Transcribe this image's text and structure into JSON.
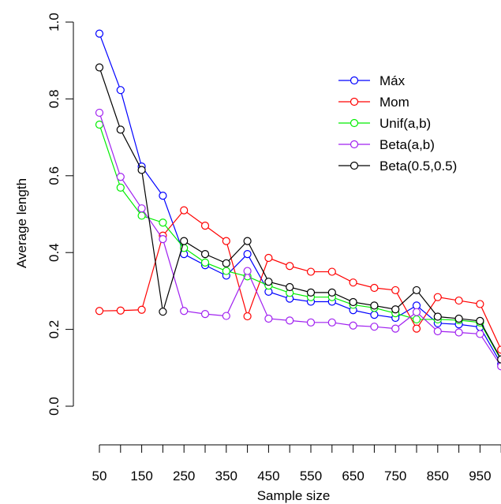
{
  "chart_data": {
    "type": "line",
    "xlabel": "Sample size",
    "ylabel": "Average length",
    "x": [
      50,
      100,
      150,
      200,
      250,
      300,
      350,
      400,
      450,
      500,
      550,
      600,
      650,
      700,
      750,
      800,
      850,
      900,
      950,
      1000
    ],
    "x_tick_labels": [
      "50",
      "150",
      "250",
      "350",
      "450",
      "550",
      "650",
      "750",
      "850",
      "950"
    ],
    "y_ticks": [
      "0.0",
      "0.2",
      "0.4",
      "0.6",
      "0.8",
      "1.0"
    ],
    "ylim": [
      0,
      1
    ],
    "grid": false,
    "legend_position": "top-right",
    "series": [
      {
        "name": "Máx",
        "color": "#0000ff",
        "values": [
          0.97,
          0.823,
          0.624,
          0.548,
          0.396,
          0.367,
          0.34,
          0.396,
          0.298,
          0.28,
          0.272,
          0.272,
          0.25,
          0.238,
          0.23,
          0.262,
          0.216,
          0.213,
          0.206,
          0.11
        ]
      },
      {
        "name": "Mom",
        "color": "#ff0000",
        "values": [
          0.248,
          0.249,
          0.251,
          0.444,
          0.51,
          0.47,
          0.43,
          0.234,
          0.386,
          0.365,
          0.35,
          0.35,
          0.322,
          0.308,
          0.302,
          0.202,
          0.284,
          0.275,
          0.266,
          0.147
        ]
      },
      {
        "name": "Unif(a,b)",
        "color": "#00ee00",
        "values": [
          0.733,
          0.569,
          0.496,
          0.478,
          0.412,
          0.374,
          0.352,
          0.338,
          0.314,
          0.295,
          0.284,
          0.284,
          0.264,
          0.256,
          0.242,
          0.226,
          0.226,
          0.224,
          0.218,
          0.12
        ]
      },
      {
        "name": "Beta(a,b)",
        "color": "#a020f0",
        "values": [
          0.764,
          0.597,
          0.515,
          0.435,
          0.248,
          0.24,
          0.235,
          0.352,
          0.228,
          0.223,
          0.218,
          0.218,
          0.21,
          0.207,
          0.202,
          0.245,
          0.195,
          0.192,
          0.188,
          0.104
        ]
      },
      {
        "name": "Beta(0.5,0.5)",
        "color": "#000000",
        "values": [
          0.882,
          0.72,
          0.615,
          0.246,
          0.43,
          0.396,
          0.372,
          0.43,
          0.324,
          0.31,
          0.296,
          0.296,
          0.271,
          0.262,
          0.252,
          0.302,
          0.233,
          0.228,
          0.222,
          0.122
        ]
      }
    ]
  }
}
